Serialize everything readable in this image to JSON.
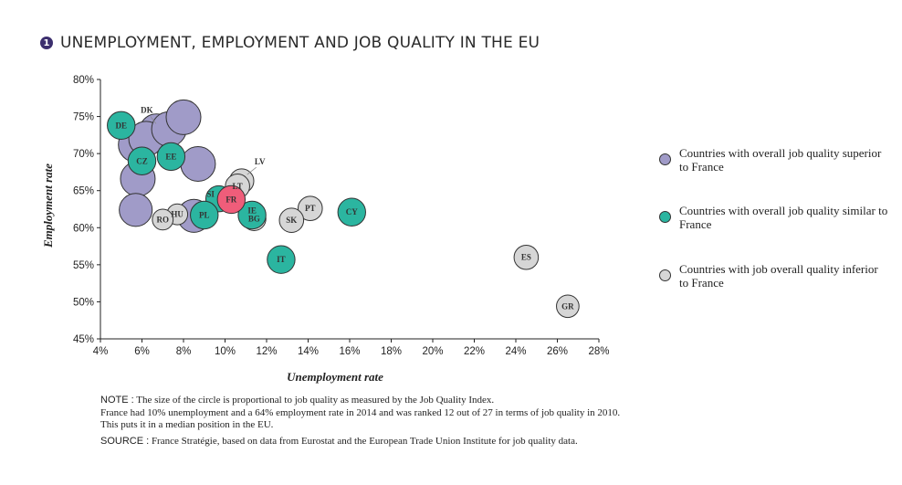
{
  "header": {
    "number": "1",
    "title": "UNEMPLOYMENT, EMPLOYMENT AND JOB QUALITY IN THE EU"
  },
  "colors": {
    "superior": "#a09bc8",
    "similar": "#2bb5a0",
    "inferior": "#d6d6d6",
    "france": "#ef5d7a",
    "title_bullet": "#3c2f6e"
  },
  "legend": {
    "superior": "Countries with overall job quality superior to France",
    "similar": "Countries with overall job quality similar to France",
    "inferior": "Countries with job overall quality inferior to France"
  },
  "notes": {
    "note_key": "NOTE :",
    "note_text": " The size of the circle is proportional to job quality as measured by the Job Quality Index.",
    "line2": "France had 10% unemployment and a 64% employment rate in 2014 and was ranked 12 out of 27 in terms of job quality in 2010.",
    "line3": "This puts it in a median position in the EU.",
    "source_key": "SOURCE :",
    "source_text": " France Stratégie, based on data from Eurostat and the European Trade Union Institute for job quality data."
  },
  "chart_data": {
    "type": "scatter",
    "xlabel": "Unemployment rate",
    "ylabel": "Employment rate",
    "xlim": [
      4,
      28
    ],
    "ylim": [
      45,
      80
    ],
    "x_ticks": [
      "4%",
      "6%",
      "8%",
      "10%",
      "12%",
      "14%",
      "16%",
      "18%",
      "20%",
      "22%",
      "24%",
      "26%",
      "28%"
    ],
    "y_ticks": [
      "45%",
      "50%",
      "55%",
      "60%",
      "65%",
      "70%",
      "75%",
      "80%"
    ],
    "grid": false,
    "legend_position": "right",
    "points": [
      {
        "label": "",
        "x": 5.7,
        "y": 71.2,
        "group": "superior",
        "size": 1.0
      },
      {
        "label": "",
        "x": 6.7,
        "y": 73.0,
        "group": "superior",
        "size": 1.0
      },
      {
        "label": "",
        "x": 6.2,
        "y": 72.0,
        "group": "superior",
        "size": 1.0
      },
      {
        "label": "",
        "x": 7.3,
        "y": 73.3,
        "group": "superior",
        "size": 1.0
      },
      {
        "label": "",
        "x": 8.0,
        "y": 74.9,
        "group": "superior",
        "size": 1.0
      },
      {
        "label": "",
        "x": 5.8,
        "y": 66.6,
        "group": "superior",
        "size": 1.0
      },
      {
        "label": "",
        "x": 8.7,
        "y": 68.6,
        "group": "superior",
        "size": 1.0
      },
      {
        "label": "",
        "x": 5.7,
        "y": 62.4,
        "group": "superior",
        "size": 0.95
      },
      {
        "label": "",
        "x": 8.5,
        "y": 61.6,
        "group": "superior",
        "size": 0.95
      },
      {
        "label": "DK",
        "x": 6.5,
        "y": 72.8,
        "group": "superior",
        "size": 0.0
      },
      {
        "label": "DE",
        "x": 5.0,
        "y": 73.8,
        "group": "similar",
        "size": 0.8
      },
      {
        "label": "EE",
        "x": 7.4,
        "y": 69.6,
        "group": "similar",
        "size": 0.8
      },
      {
        "label": "CZ",
        "x": 6.0,
        "y": 69.0,
        "group": "similar",
        "size": 0.8
      },
      {
        "label": "SI",
        "x": 9.7,
        "y": 63.9,
        "group": "similar",
        "size": 0.75
      },
      {
        "label": "PL",
        "x": 9.0,
        "y": 61.7,
        "group": "similar",
        "size": 0.8
      },
      {
        "label": "IE",
        "x": 11.3,
        "y": 61.7,
        "group": "similar",
        "size": 0.8
      },
      {
        "label": "CY",
        "x": 16.1,
        "y": 62.1,
        "group": "similar",
        "size": 0.8
      },
      {
        "label": "IT",
        "x": 12.7,
        "y": 55.7,
        "group": "similar",
        "size": 0.8
      },
      {
        "label": "FR",
        "x": 10.3,
        "y": 63.8,
        "group": "france",
        "size": 0.8
      },
      {
        "label": "LV",
        "x": 10.8,
        "y": 66.3,
        "group": "inferior",
        "size": 0.7
      },
      {
        "label": "LT",
        "x": 10.6,
        "y": 65.6,
        "group": "inferior",
        "size": 0.7
      },
      {
        "label": "PT",
        "x": 14.1,
        "y": 62.6,
        "group": "inferior",
        "size": 0.7
      },
      {
        "label": "SK",
        "x": 13.2,
        "y": 61.0,
        "group": "inferior",
        "size": 0.7
      },
      {
        "label": "BG",
        "x": 11.4,
        "y": 61.2,
        "group": "inferior",
        "size": 0.68
      },
      {
        "label": "HU",
        "x": 7.7,
        "y": 61.8,
        "group": "inferior",
        "size": 0.6
      },
      {
        "label": "RO",
        "x": 7.0,
        "y": 61.1,
        "group": "inferior",
        "size": 0.6
      },
      {
        "label": "ES",
        "x": 24.5,
        "y": 56.0,
        "group": "inferior",
        "size": 0.7
      },
      {
        "label": "GR",
        "x": 26.5,
        "y": 49.4,
        "group": "inferior",
        "size": 0.65
      }
    ]
  }
}
